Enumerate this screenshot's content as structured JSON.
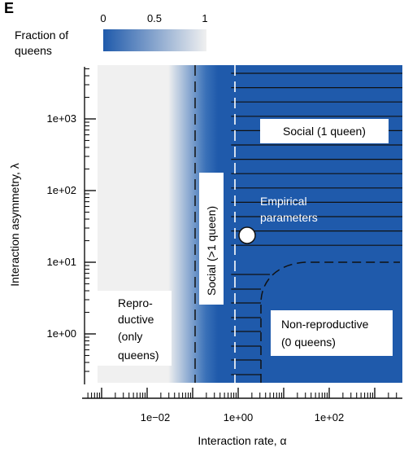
{
  "panel_label": "E",
  "legend": {
    "title_line1": "Fraction of",
    "title_line2": "queens",
    "ticks": [
      "0",
      "0.5",
      "1"
    ],
    "color_low": "#1f5aab",
    "color_high": "#f0f0f0"
  },
  "chart_data": {
    "type": "heatmap",
    "title": "",
    "xlabel": "Interaction rate, α",
    "ylabel": "Interaction asymmetry, λ",
    "x_scale": "log10",
    "y_scale": "log10",
    "xlim": [
      0.0005,
      3000
    ],
    "ylim": [
      0.1,
      50000
    ],
    "x_tick_labels": [
      "1e−02",
      "1e+00",
      "1e+02"
    ],
    "x_tick_values": [
      0.01,
      1,
      100
    ],
    "y_tick_labels": [
      "1e+00",
      "1e+01",
      "1e+02",
      "1e+03"
    ],
    "y_tick_values": [
      1,
      10,
      100,
      1000
    ],
    "color_range": [
      0,
      1
    ],
    "colormap": [
      "#1f5aab",
      "#f0f0f0"
    ],
    "boundaries": {
      "reproductive_social_alpha": 0.1,
      "multi_single_queen_alpha": 0.7,
      "nonreproductive_lower_alpha": 1.3,
      "nonreproductive_lambda": 10
    },
    "regions": [
      {
        "label_lines": [
          "Repro-",
          "ductive",
          "(only",
          "queens)"
        ]
      },
      {
        "label": "Social (>1 queen)"
      },
      {
        "label": "Social (1 queen)"
      },
      {
        "label_lines": [
          "Non-reproductive",
          "(0 queens)"
        ]
      }
    ],
    "point": {
      "label_lines": [
        "Empirical",
        "parameters"
      ],
      "alpha": 1.3,
      "lambda": 25
    }
  }
}
